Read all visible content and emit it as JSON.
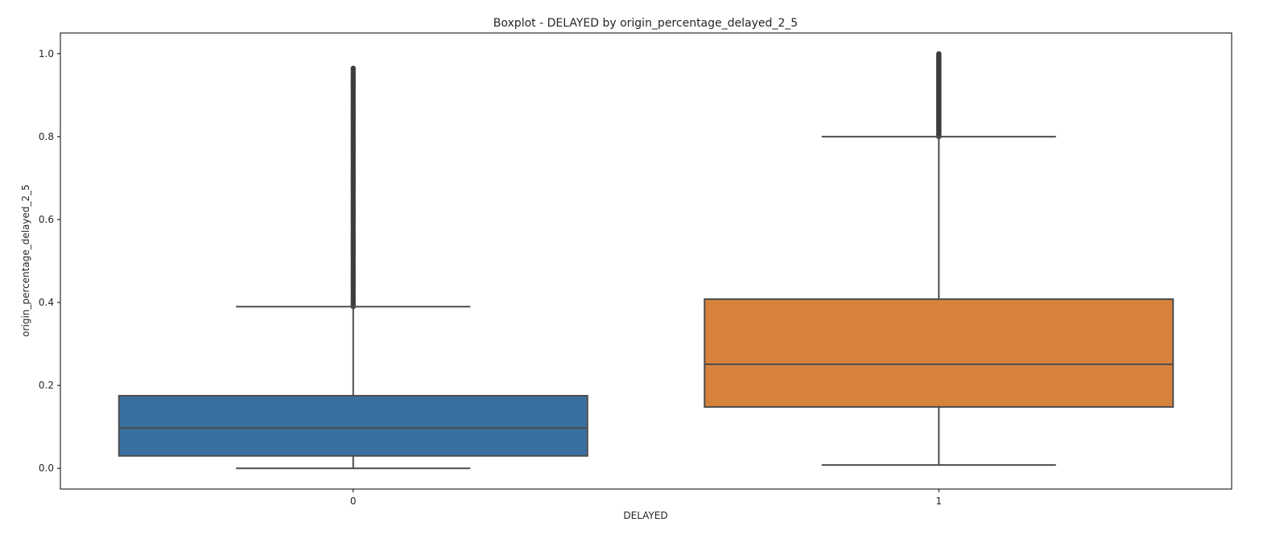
{
  "chart_data": {
    "type": "box",
    "title": "Boxplot - DELAYED by origin_percentage_delayed_2_5",
    "xlabel": "DELAYED",
    "ylabel": "origin_percentage_delayed_2_5",
    "categories": [
      "0",
      "1"
    ],
    "ylim": [
      -0.05,
      1.05
    ],
    "yticks": [
      0.0,
      0.2,
      0.4,
      0.6,
      0.8,
      1.0
    ],
    "ytick_labels": [
      "0.0",
      "0.2",
      "0.4",
      "0.6",
      "0.8",
      "1.0"
    ],
    "grid": false,
    "legend": "none",
    "boxes": [
      {
        "category": "0",
        "whisker_low": 0.0,
        "q1": 0.03,
        "median": 0.097,
        "q3": 0.175,
        "whisker_high": 0.39,
        "outliers_range": [
          0.39,
          0.965
        ],
        "color": "#3a70a0"
      },
      {
        "category": "1",
        "whisker_low": 0.008,
        "q1": 0.148,
        "median": 0.251,
        "q3": 0.408,
        "whisker_high": 0.8,
        "outliers_range": [
          0.8,
          1.0
        ],
        "color": "#d6823d"
      }
    ]
  }
}
